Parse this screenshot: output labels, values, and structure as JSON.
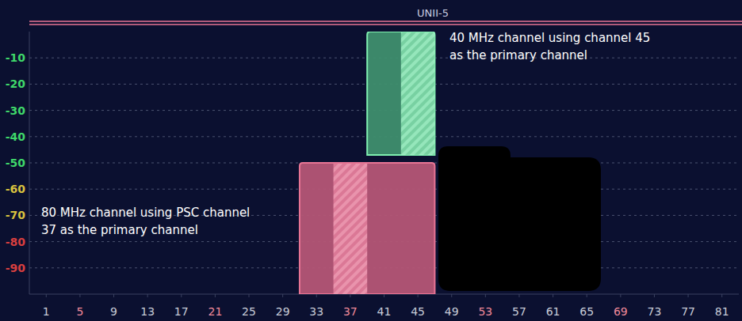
{
  "chart_data": {
    "type": "spectrum",
    "title": "UNII-5",
    "xlim": [
      -1,
      83
    ],
    "xticks": [
      1,
      5,
      9,
      13,
      17,
      21,
      25,
      29,
      33,
      37,
      41,
      45,
      49,
      53,
      57,
      61,
      65,
      69,
      73,
      77,
      81
    ],
    "ylim": [
      -100,
      0
    ],
    "yticks": [
      -10,
      -20,
      -30,
      -40,
      -50,
      -60,
      -70,
      -80,
      -90
    ],
    "grid": true,
    "series": [
      {
        "label": [
          "40 MHz channel using channel 45",
          "as the primary channel"
        ],
        "color": "#7ff0b0",
        "x": [
          39,
          47
        ],
        "primary": [
          43,
          47
        ],
        "values": [
          -47,
          0
        ]
      },
      {
        "label": [
          "80 MHz channel using PSC channel",
          "37 as the primary channel"
        ],
        "color": "#e87595",
        "x": [
          31,
          47
        ],
        "primary": [
          35,
          39
        ],
        "values": [
          -100,
          -50
        ]
      }
    ]
  }
}
